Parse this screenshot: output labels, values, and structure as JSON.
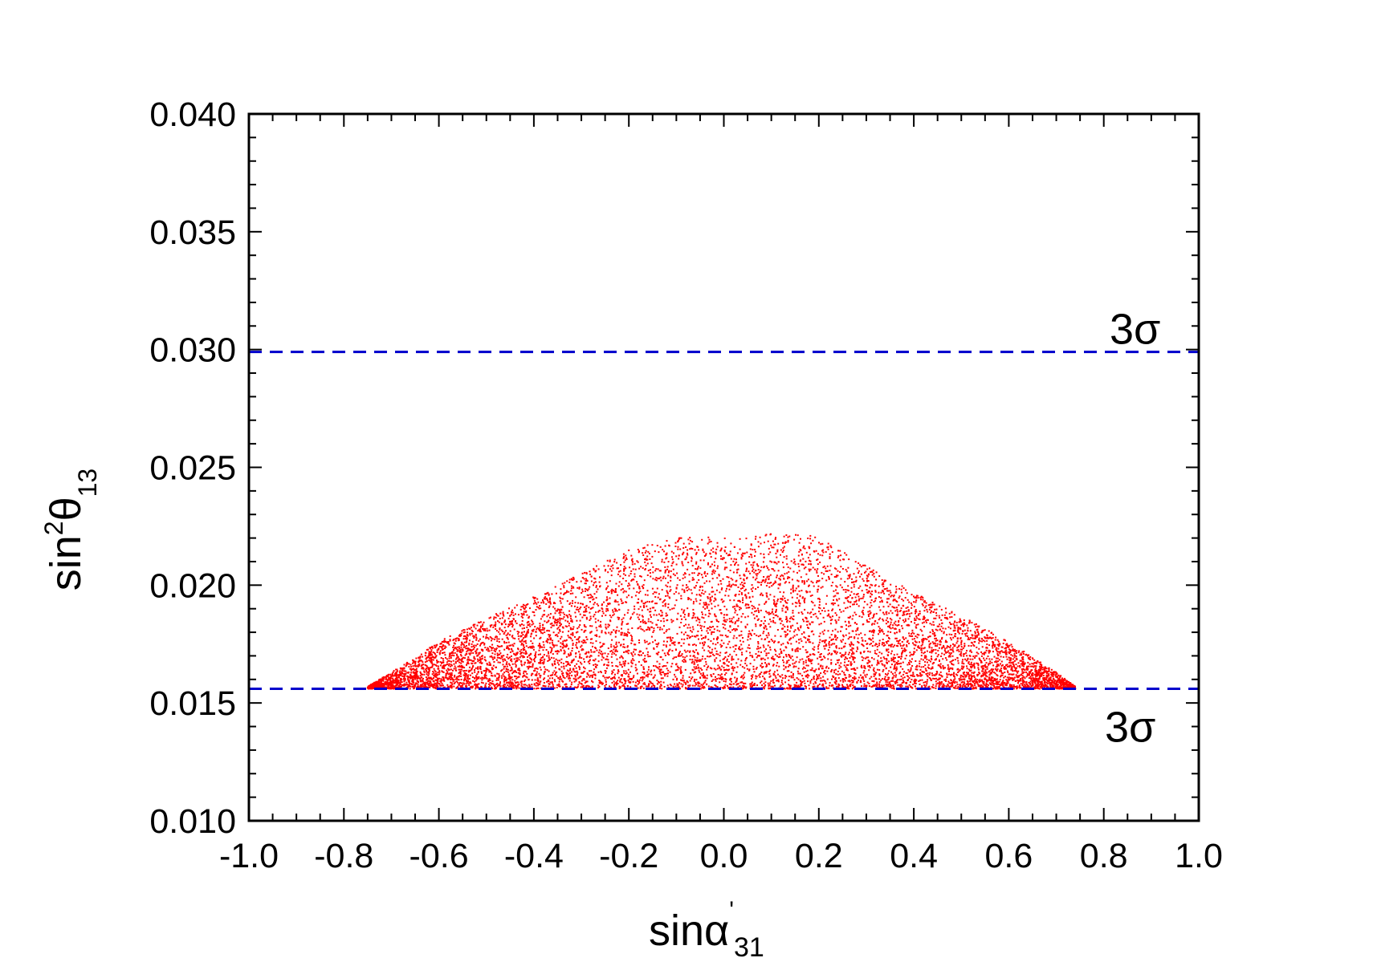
{
  "chart_data": {
    "type": "scatter",
    "xlabel": {
      "main": "sinα",
      "prime": "'",
      "sub": "31"
    },
    "ylabel": {
      "main": "sin",
      "sup": "2",
      "greek": "θ",
      "sub": "13"
    },
    "xlim": [
      -1.0,
      1.0
    ],
    "ylim": [
      0.01,
      0.04
    ],
    "x_major_ticks": [
      -1.0,
      -0.8,
      -0.6,
      -0.4,
      -0.2,
      0.0,
      0.2,
      0.4,
      0.6,
      0.8,
      1.0
    ],
    "x_tick_labels": [
      "-1.0",
      "-0.8",
      "-0.6",
      "-0.4",
      "-0.2",
      "0.0",
      "0.2",
      "0.4",
      "0.6",
      "0.8",
      "1.0"
    ],
    "y_major_ticks": [
      0.01,
      0.015,
      0.02,
      0.025,
      0.03,
      0.035,
      0.04
    ],
    "y_tick_labels": [
      "0.010",
      "0.015",
      "0.020",
      "0.025",
      "0.030",
      "0.035",
      "0.040"
    ],
    "grid": false,
    "series": [
      {
        "marker_color": "#ff0000",
        "region": {
          "y_min": 0.0156,
          "x_range": [
            -0.75,
            0.74
          ],
          "upper_envelope": [
            [
              -0.75,
              0.0157
            ],
            [
              -0.7,
              0.0163
            ],
            [
              -0.6,
              0.0176
            ],
            [
              -0.5,
              0.0186
            ],
            [
              -0.4,
              0.0195
            ],
            [
              -0.3,
              0.0205
            ],
            [
              -0.2,
              0.0215
            ],
            [
              -0.1,
              0.0221
            ],
            [
              0.0,
              0.022
            ],
            [
              0.1,
              0.0222
            ],
            [
              0.2,
              0.0221
            ],
            [
              0.3,
              0.0208
            ],
            [
              0.4,
              0.0197
            ],
            [
              0.5,
              0.0187
            ],
            [
              0.6,
              0.0176
            ],
            [
              0.7,
              0.0163
            ],
            [
              0.74,
              0.0157
            ]
          ]
        }
      }
    ],
    "reference_lines": [
      {
        "y": 0.0299,
        "label": "3σ",
        "color": "#0000cc",
        "style": "dashed"
      },
      {
        "y": 0.0156,
        "label": "3σ",
        "color": "#0000cc",
        "style": "dashed"
      }
    ]
  }
}
